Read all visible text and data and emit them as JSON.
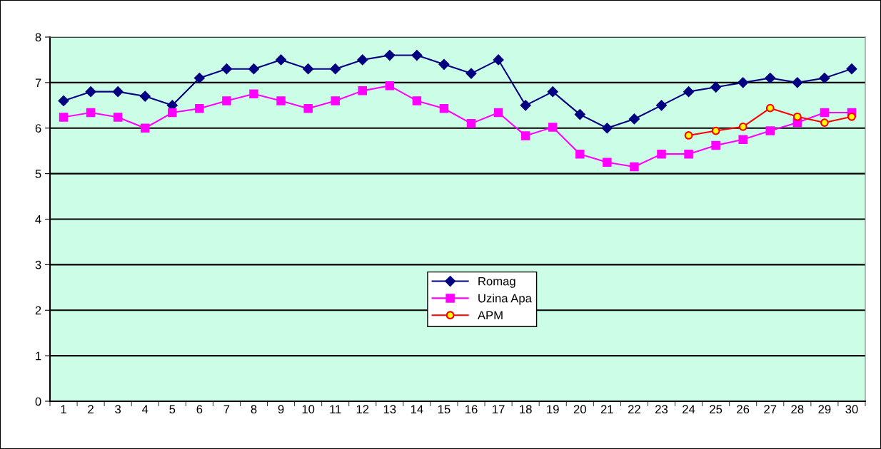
{
  "chart_data": {
    "type": "line",
    "categories": [
      "1",
      "2",
      "3",
      "4",
      "5",
      "6",
      "7",
      "8",
      "9",
      "10",
      "11",
      "12",
      "13",
      "14",
      "15",
      "16",
      "17",
      "18",
      "19",
      "20",
      "21",
      "22",
      "23",
      "24",
      "25",
      "26",
      "27",
      "28",
      "29",
      "30"
    ],
    "series": [
      {
        "name": "Romag",
        "color": "#000080",
        "marker": "diamond",
        "values": [
          6.6,
          6.8,
          6.8,
          6.7,
          6.5,
          7.1,
          7.3,
          7.3,
          7.5,
          7.3,
          7.3,
          7.5,
          7.6,
          7.6,
          7.4,
          7.2,
          7.5,
          6.5,
          6.8,
          6.3,
          6.0,
          6.2,
          6.5,
          6.8,
          6.9,
          7.0,
          7.1,
          7.0,
          7.1,
          7.3
        ]
      },
      {
        "name": "Uzina Apa",
        "color": "#ff00ff",
        "marker": "square",
        "values": [
          6.24,
          6.34,
          6.24,
          6.0,
          6.34,
          6.43,
          6.6,
          6.75,
          6.6,
          6.43,
          6.6,
          6.82,
          6.93,
          6.6,
          6.43,
          6.1,
          6.34,
          5.83,
          6.02,
          5.43,
          5.25,
          5.15,
          5.43,
          5.43,
          5.62,
          5.75,
          5.94,
          6.12,
          6.34,
          6.34
        ]
      },
      {
        "name": "APM",
        "color": "#ff0000",
        "marker": "circle",
        "values": [
          null,
          null,
          null,
          null,
          null,
          null,
          null,
          null,
          null,
          null,
          null,
          null,
          null,
          null,
          null,
          null,
          null,
          null,
          null,
          null,
          null,
          null,
          null,
          5.84,
          5.94,
          6.03,
          6.44,
          6.25,
          6.12,
          6.25
        ]
      }
    ],
    "ylim": [
      0,
      8
    ],
    "yticks": [
      0,
      1,
      2,
      3,
      4,
      5,
      6,
      7,
      8
    ],
    "grid": "y",
    "legend": "center"
  }
}
